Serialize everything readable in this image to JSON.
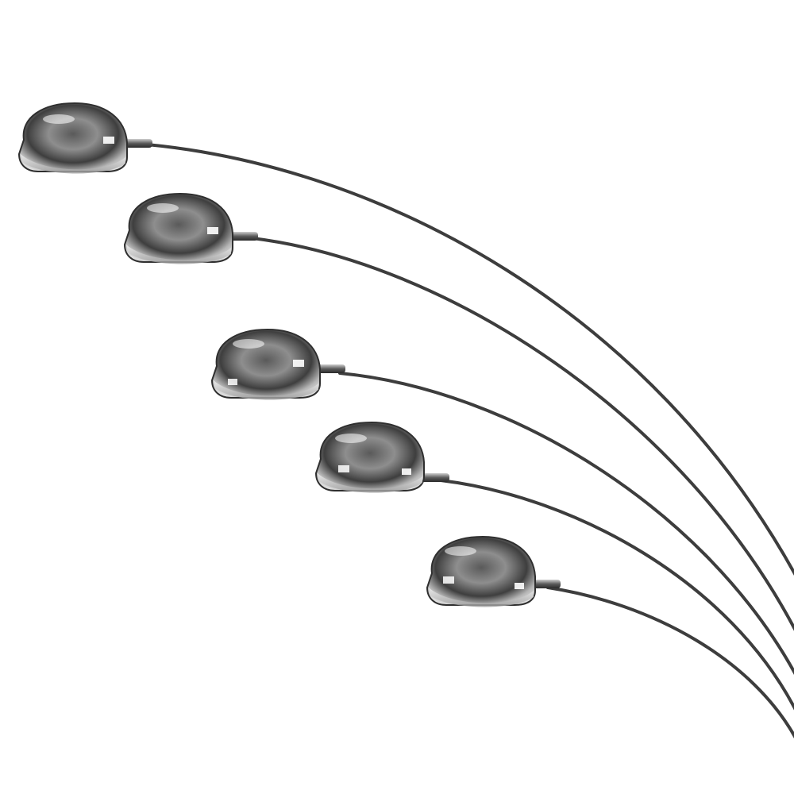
{
  "image": {
    "subject": "arc-floor-lamp-heads",
    "lamp_head_count": 5,
    "colors": {
      "background": "#ffffff",
      "chrome_dark": "#3a3a3a",
      "chrome_mid": "#8c8c8c",
      "chrome_light": "#e6e6e6",
      "arm": "#3d3d3d",
      "highlight": "#ffffff"
    }
  }
}
